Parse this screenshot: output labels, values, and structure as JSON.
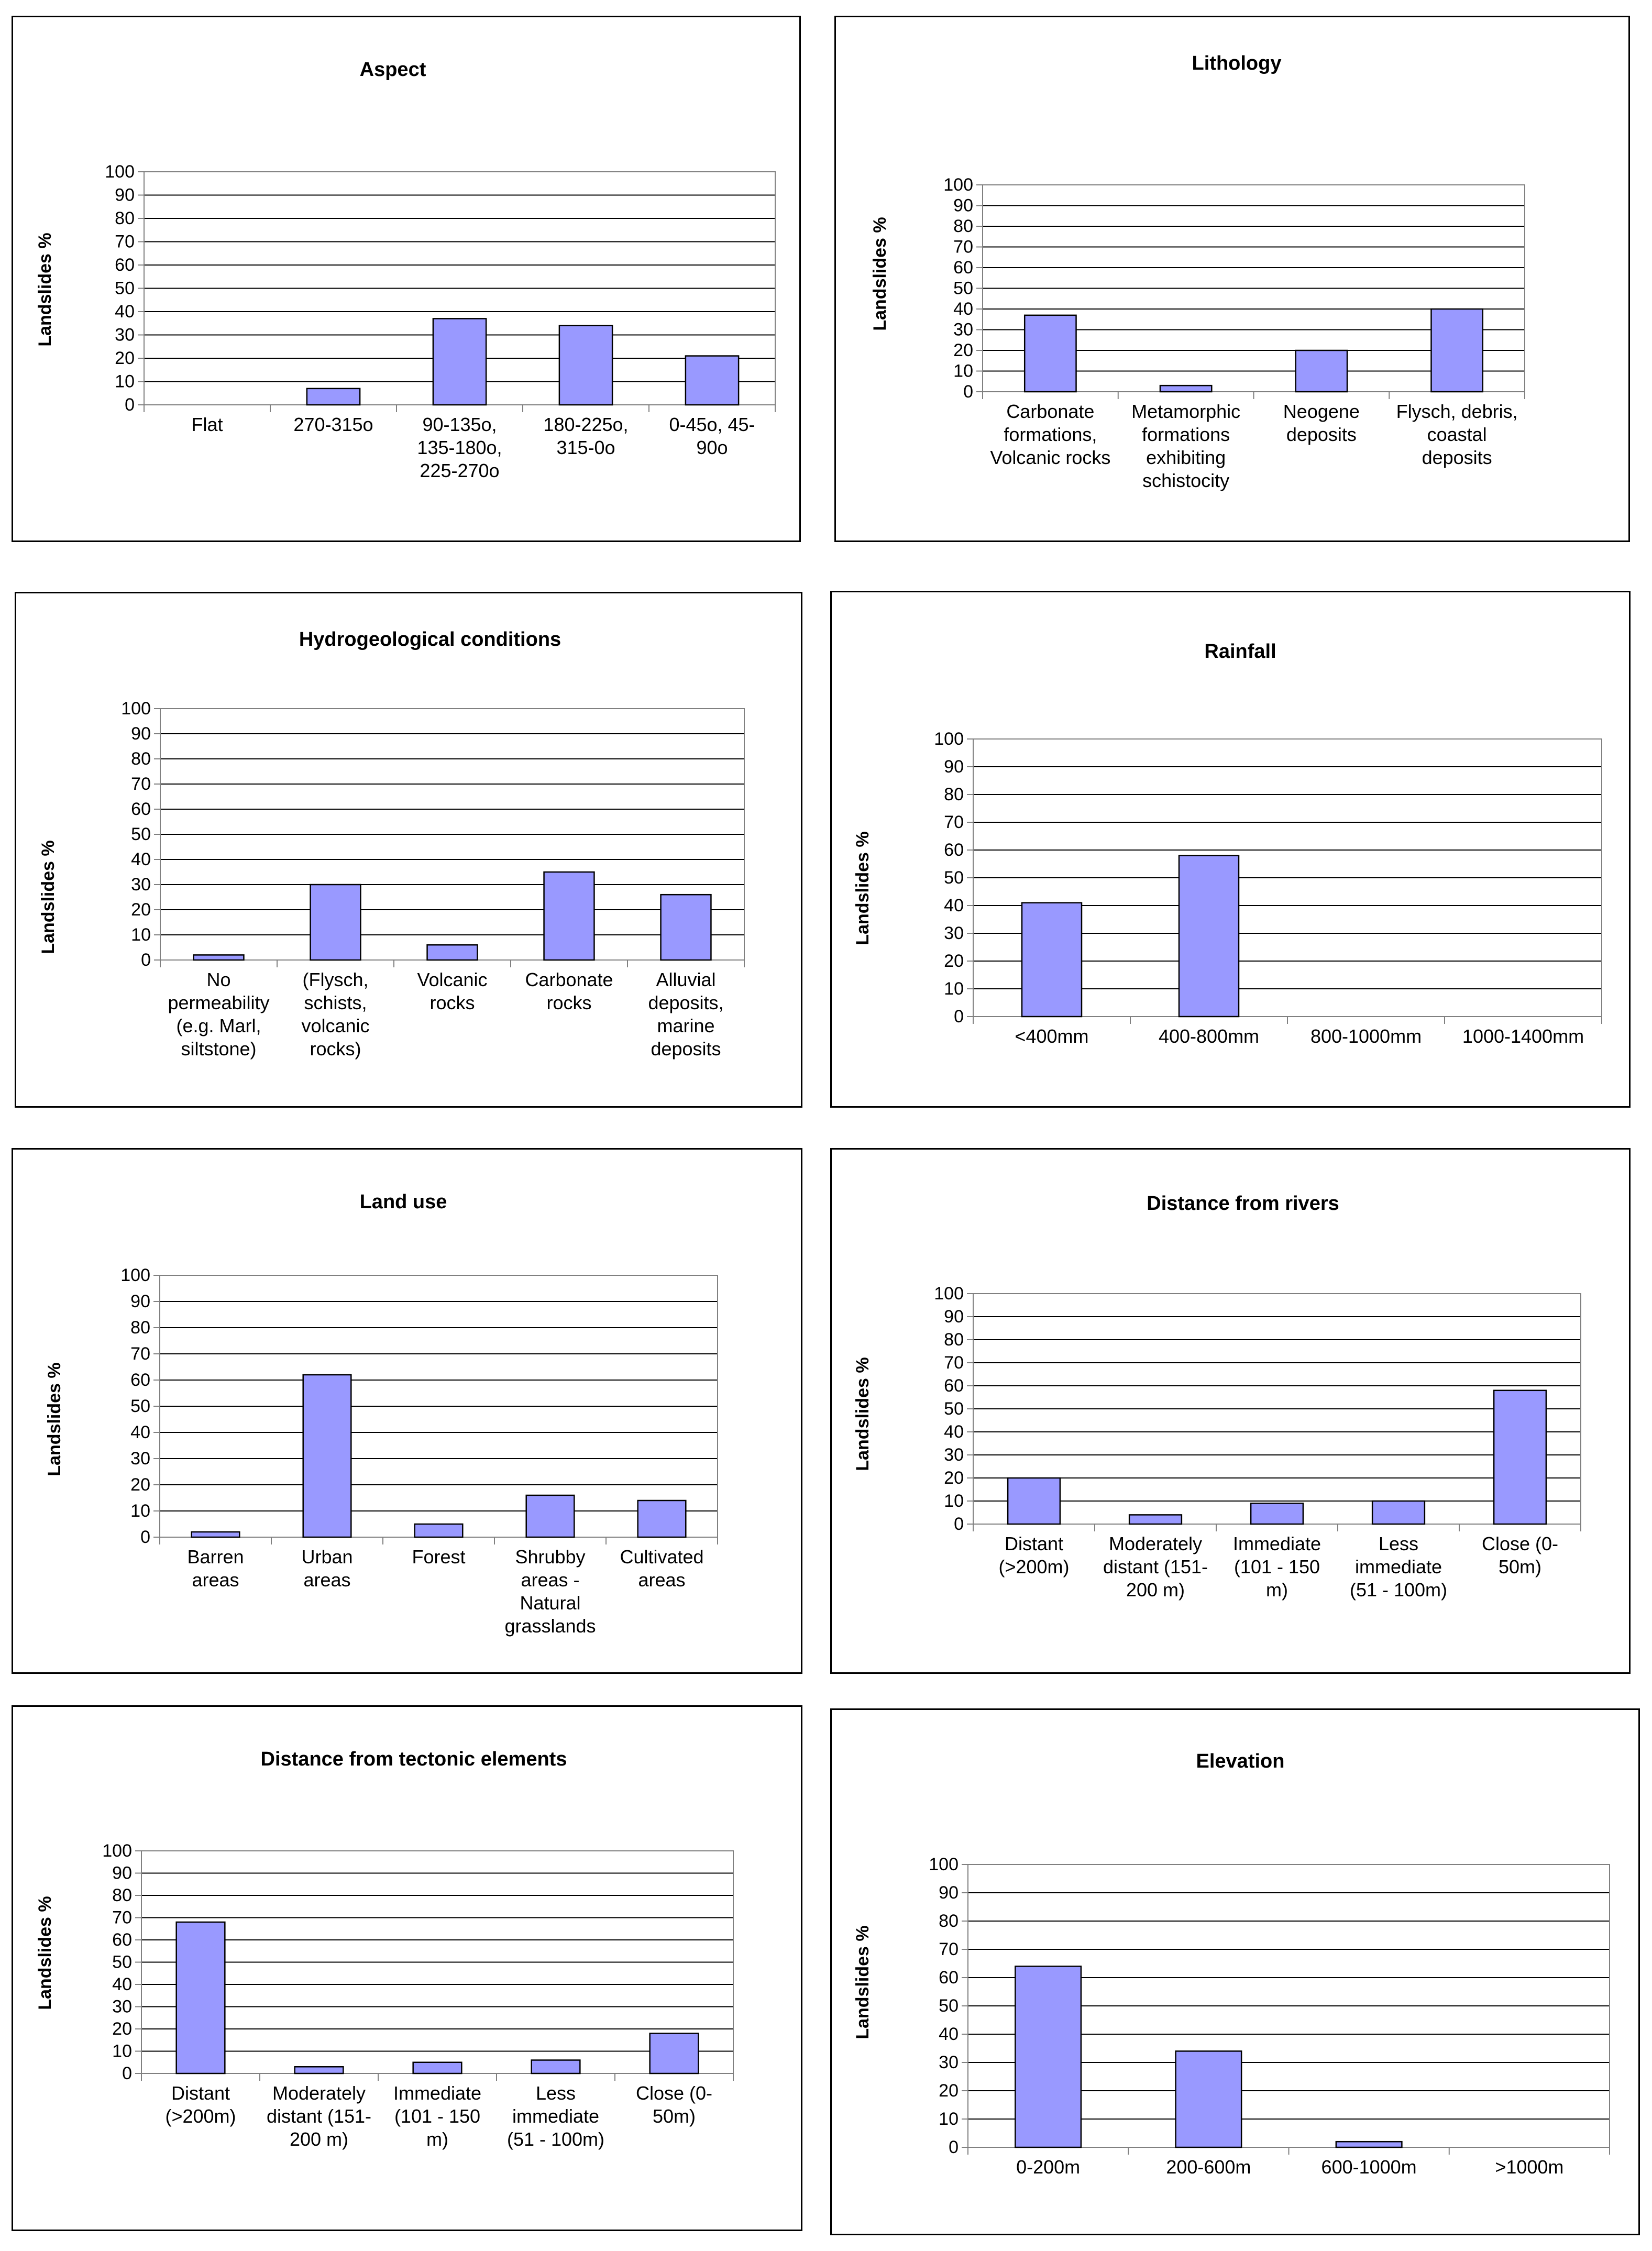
{
  "ylabel": "Landslides %",
  "bar_color": "#9999ff",
  "chart_data": [
    {
      "type": "bar",
      "title": "Aspect",
      "ylabel": "Landslides %",
      "ylim": [
        0,
        100
      ],
      "yticks": [
        0,
        10,
        20,
        30,
        40,
        50,
        60,
        70,
        80,
        90,
        100
      ],
      "categories": [
        [
          "Flat"
        ],
        [
          "270-315o"
        ],
        [
          "90-135o,",
          "135-180o,",
          "225-270o"
        ],
        [
          "180-225o,",
          "315-0o"
        ],
        [
          "0-45o, 45-",
          "90o"
        ]
      ],
      "values": [
        0,
        7,
        37,
        34,
        21
      ]
    },
    {
      "type": "bar",
      "title": "Lithology",
      "ylabel": "Landslides %",
      "ylim": [
        0,
        100
      ],
      "yticks": [
        0,
        10,
        20,
        30,
        40,
        50,
        60,
        70,
        80,
        90,
        100
      ],
      "categories": [
        [
          "Carbonate",
          "formations,",
          "Volcanic rocks"
        ],
        [
          "Metamorphic",
          "formations",
          "exhibiting",
          "schistocity"
        ],
        [
          "Neogene",
          "deposits"
        ],
        [
          "Flysch, debris,",
          "coastal",
          "deposits"
        ]
      ],
      "values": [
        37,
        3,
        20,
        40
      ]
    },
    {
      "type": "bar",
      "title": "Hydrogeological conditions",
      "ylabel": "Landslides %",
      "ylim": [
        0,
        100
      ],
      "yticks": [
        0,
        10,
        20,
        30,
        40,
        50,
        60,
        70,
        80,
        90,
        100
      ],
      "categories": [
        [
          "No",
          "permeability",
          "(e.g. Marl,",
          "siltstone)"
        ],
        [
          "(Flysch,",
          "schists,",
          "volcanic",
          "rocks)"
        ],
        [
          "Volcanic",
          "rocks"
        ],
        [
          "Carbonate",
          "rocks"
        ],
        [
          "Alluvial",
          "deposits,",
          "marine",
          "deposits"
        ]
      ],
      "values": [
        2,
        30,
        6,
        35,
        26
      ]
    },
    {
      "type": "bar",
      "title": "Rainfall",
      "ylabel": "Landslides %",
      "ylim": [
        0,
        100
      ],
      "yticks": [
        0,
        10,
        20,
        30,
        40,
        50,
        60,
        70,
        80,
        90,
        100
      ],
      "categories": [
        [
          "<400mm"
        ],
        [
          "400-800mm"
        ],
        [
          "800-1000mm"
        ],
        [
          "1000-1400mm"
        ]
      ],
      "values": [
        41,
        58,
        0,
        0
      ]
    },
    {
      "type": "bar",
      "title": "Land use",
      "ylabel": "Landslides %",
      "ylim": [
        0,
        100
      ],
      "yticks": [
        0,
        10,
        20,
        30,
        40,
        50,
        60,
        70,
        80,
        90,
        100
      ],
      "categories": [
        [
          "Barren",
          "areas"
        ],
        [
          "Urban",
          "areas"
        ],
        [
          "Forest"
        ],
        [
          "Shrubby",
          "areas -",
          "Natural",
          "grasslands"
        ],
        [
          "Cultivated",
          "areas"
        ]
      ],
      "values": [
        2,
        62,
        5,
        16,
        14
      ]
    },
    {
      "type": "bar",
      "title": "Distance from rivers",
      "ylabel": "Landslides %",
      "ylim": [
        0,
        100
      ],
      "yticks": [
        0,
        10,
        20,
        30,
        40,
        50,
        60,
        70,
        80,
        90,
        100
      ],
      "categories": [
        [
          "Distant",
          "(>200m)"
        ],
        [
          "Moderately",
          "distant (151-",
          "200 m)"
        ],
        [
          "Immediate",
          "(101 - 150",
          "m)"
        ],
        [
          "Less",
          "immediate",
          "(51 - 100m)"
        ],
        [
          "Close (0-",
          "50m)"
        ]
      ],
      "values": [
        20,
        4,
        9,
        10,
        58
      ]
    },
    {
      "type": "bar",
      "title": "Distance from tectonic elements",
      "ylabel": "Landslides %",
      "ylim": [
        0,
        100
      ],
      "yticks": [
        0,
        10,
        20,
        30,
        40,
        50,
        60,
        70,
        80,
        90,
        100
      ],
      "categories": [
        [
          "Distant",
          "(>200m)"
        ],
        [
          "Moderately",
          "distant (151-",
          "200 m)"
        ],
        [
          "Immediate",
          "(101 - 150",
          "m)"
        ],
        [
          "Less",
          "immediate",
          "(51 - 100m)"
        ],
        [
          "Close (0-",
          "50m)"
        ]
      ],
      "values": [
        68,
        3,
        5,
        6,
        18
      ]
    },
    {
      "type": "bar",
      "title": "Elevation",
      "ylabel": "Landslides %",
      "ylim": [
        0,
        100
      ],
      "yticks": [
        0,
        10,
        20,
        30,
        40,
        50,
        60,
        70,
        80,
        90,
        100
      ],
      "categories": [
        [
          "0-200m"
        ],
        [
          "200-600m"
        ],
        [
          "600-1000m"
        ],
        [
          ">1000m"
        ]
      ],
      "values": [
        64,
        34,
        2,
        0
      ]
    }
  ]
}
